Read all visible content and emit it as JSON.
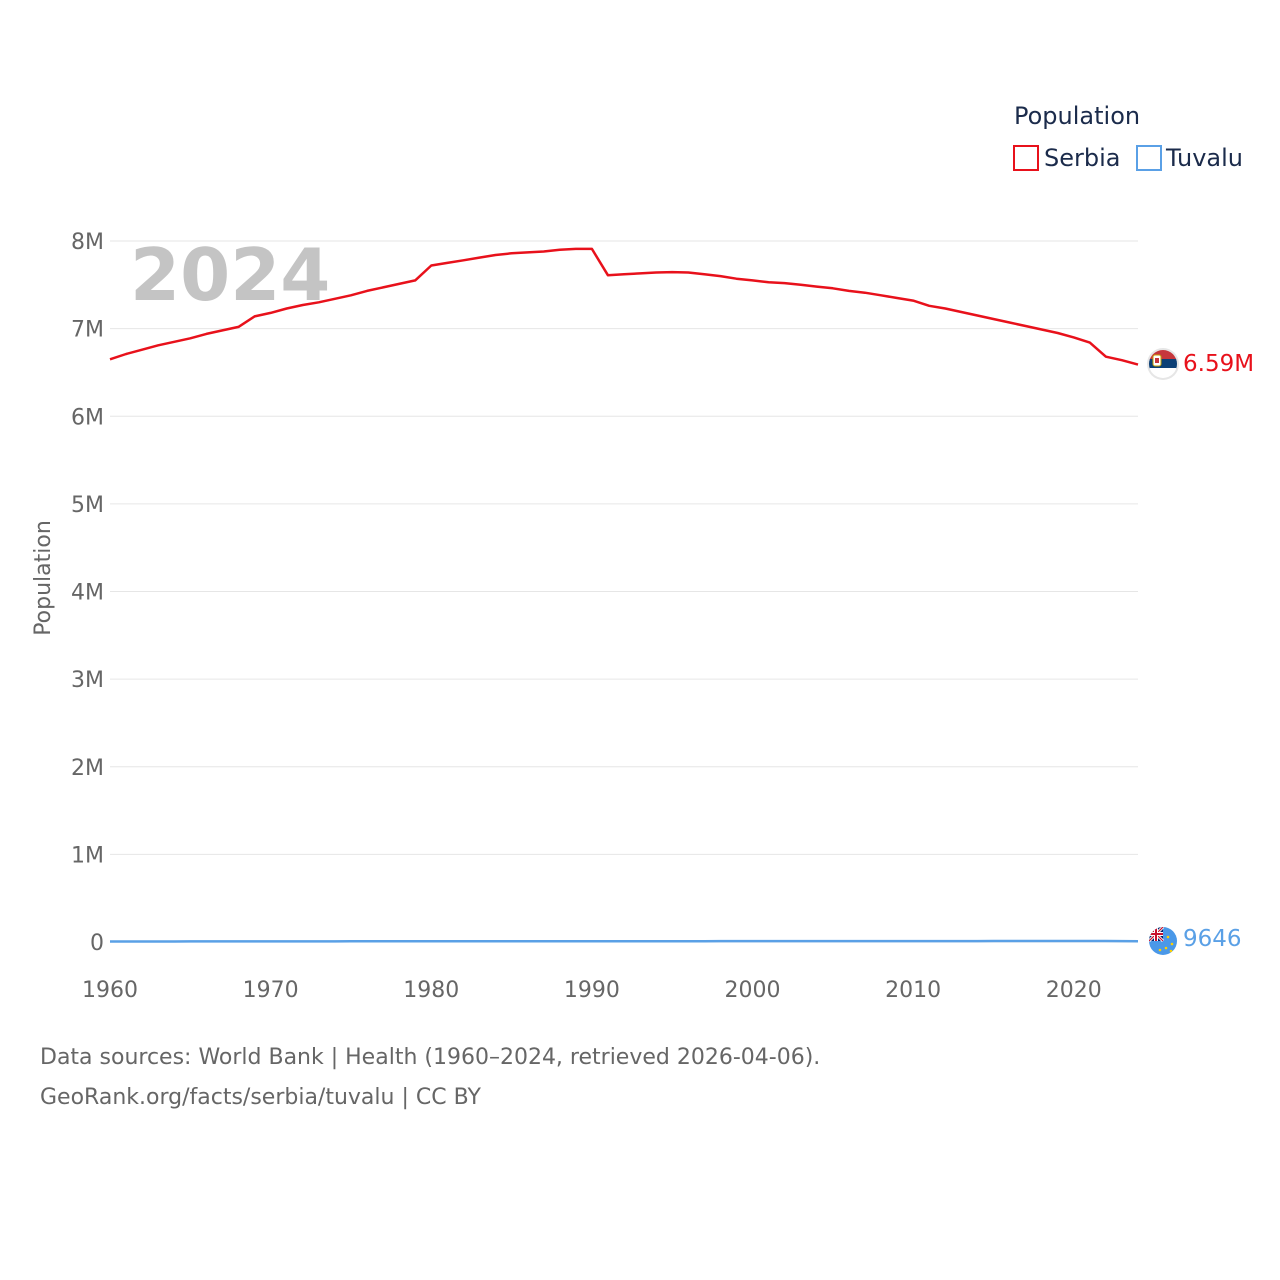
{
  "chart_data": {
    "type": "line",
    "year_label": "2024",
    "legend_title": "Population",
    "ylabel": "Population",
    "xlabel": "",
    "xlim": [
      1960,
      2024
    ],
    "ylim": [
      0,
      8000000
    ],
    "x_ticks": [
      "1960",
      "1970",
      "1980",
      "1990",
      "2000",
      "2010",
      "2020"
    ],
    "y_ticks": [
      "0",
      "1M",
      "2M",
      "3M",
      "4M",
      "5M",
      "6M",
      "7M",
      "8M"
    ],
    "legend_position": "top-right",
    "x": [
      1960,
      1961,
      1962,
      1963,
      1964,
      1965,
      1966,
      1967,
      1968,
      1969,
      1970,
      1971,
      1972,
      1973,
      1974,
      1975,
      1976,
      1977,
      1978,
      1979,
      1980,
      1981,
      1982,
      1983,
      1984,
      1985,
      1986,
      1987,
      1988,
      1989,
      1990,
      1991,
      1992,
      1993,
      1994,
      1995,
      1996,
      1997,
      1998,
      1999,
      2000,
      2001,
      2002,
      2003,
      2004,
      2005,
      2006,
      2007,
      2008,
      2009,
      2010,
      2011,
      2012,
      2013,
      2014,
      2015,
      2016,
      2017,
      2018,
      2019,
      2020,
      2021,
      2022,
      2023,
      2024
    ],
    "series": [
      {
        "name": "Serbia",
        "color": "#e8111b",
        "end_label": "6.59M",
        "flag_icon": "serbia-flag-icon",
        "values": [
          6650000,
          6710000,
          6760000,
          6810000,
          6850000,
          6890000,
          6940000,
          6980000,
          7020000,
          7140000,
          7180000,
          7230000,
          7270000,
          7300000,
          7340000,
          7380000,
          7430000,
          7470000,
          7510000,
          7550000,
          7720000,
          7750000,
          7780000,
          7810000,
          7840000,
          7860000,
          7870000,
          7880000,
          7900000,
          7910000,
          7910000,
          7610000,
          7620000,
          7630000,
          7640000,
          7645000,
          7640000,
          7620000,
          7600000,
          7570000,
          7550000,
          7530000,
          7520000,
          7500000,
          7480000,
          7460000,
          7430000,
          7410000,
          7380000,
          7350000,
          7320000,
          7260000,
          7230000,
          7190000,
          7150000,
          7110000,
          7070000,
          7030000,
          6990000,
          6950000,
          6900000,
          6840000,
          6680000,
          6640000,
          6590000
        ]
      },
      {
        "name": "Tuvalu",
        "color": "#5aa0e6",
        "end_label": "9646",
        "flag_icon": "tuvalu-flag-icon",
        "values": [
          5400,
          5600,
          5800,
          6000,
          6200,
          6400,
          6600,
          6700,
          6800,
          6900,
          7000,
          7100,
          7200,
          7300,
          7400,
          7500,
          7600,
          7700,
          7800,
          7900,
          8000,
          8100,
          8200,
          8300,
          8400,
          8500,
          8600,
          8700,
          8800,
          8900,
          9000,
          9100,
          9200,
          9300,
          9400,
          9500,
          9600,
          9700,
          9800,
          9900,
          10000,
          10100,
          10200,
          10300,
          10400,
          10500,
          10600,
          10600,
          10600,
          10600,
          10600,
          10600,
          10700,
          10800,
          10800,
          10900,
          10900,
          11000,
          11000,
          11000,
          11100,
          11200,
          11100,
          10000,
          9646
        ]
      }
    ]
  },
  "footer": {
    "sources": "Data sources: World Bank | Health (1960–2024, retrieved 2026-04-06).",
    "url": "GeoRank.org/facts/serbia/tuvalu | CC BY"
  }
}
